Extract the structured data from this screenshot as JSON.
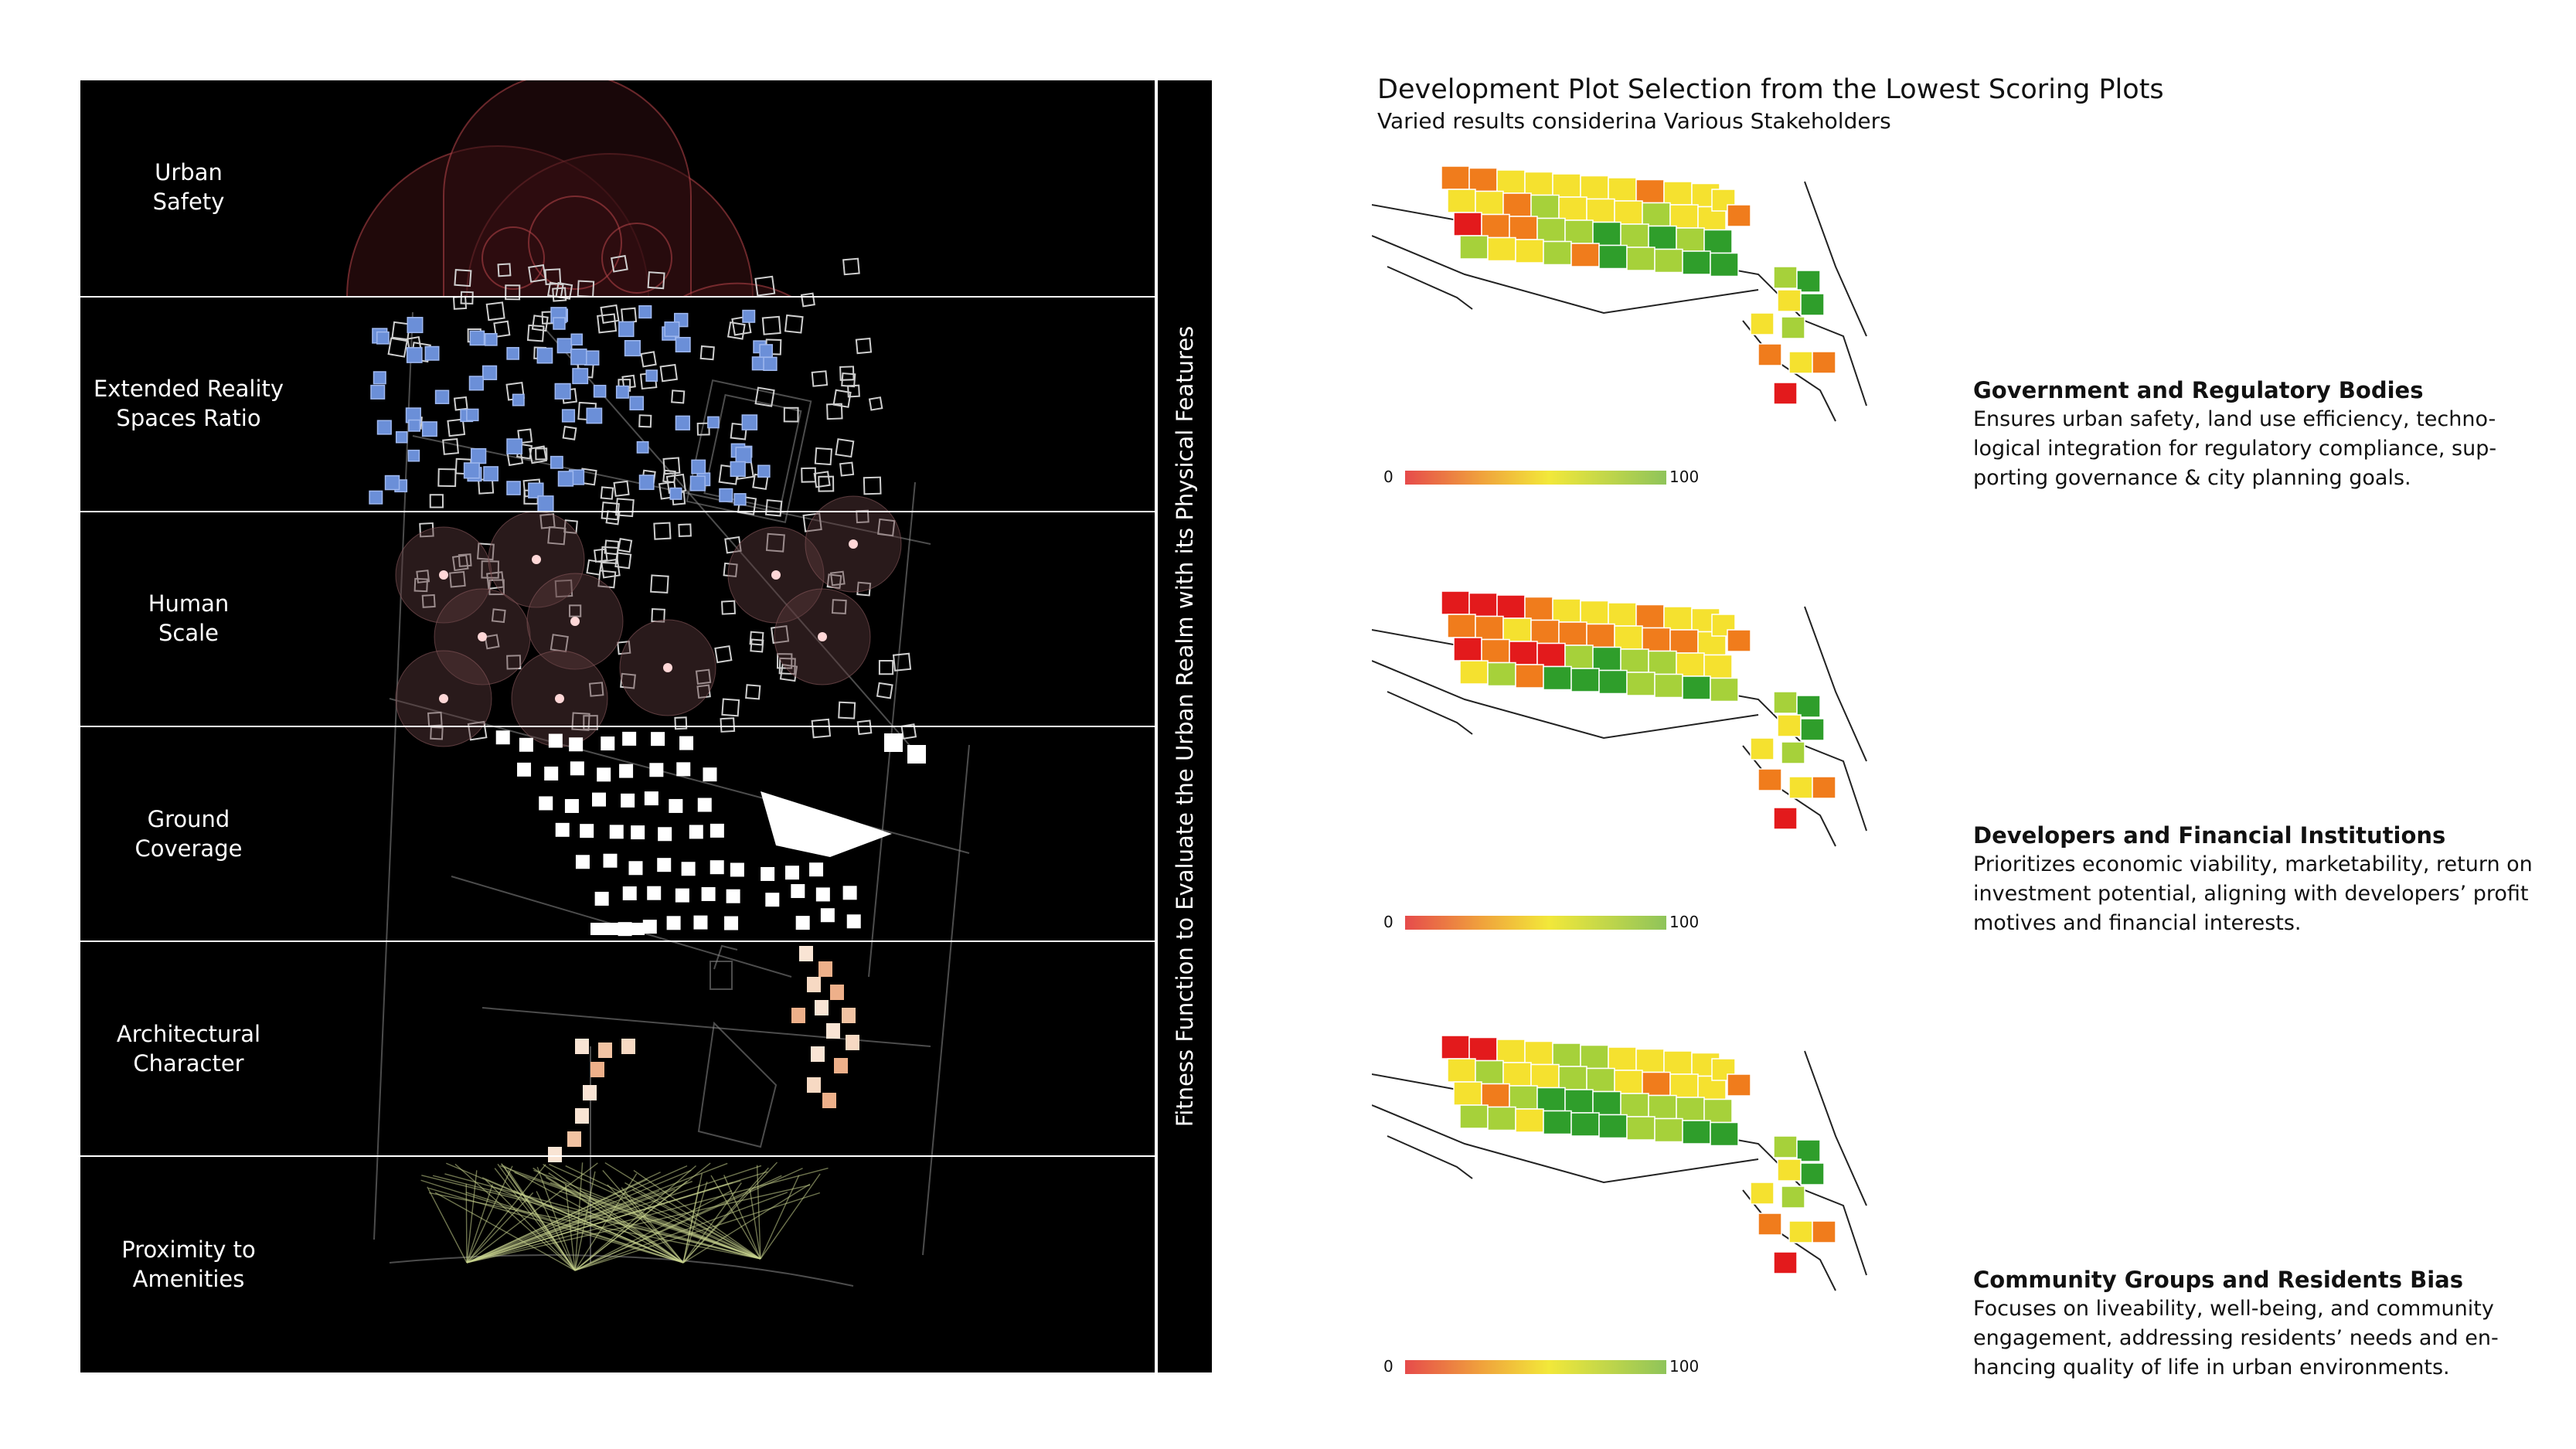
{
  "left_panel": {
    "bands": [
      {
        "label": "Urban\nSafety"
      },
      {
        "label": "Extended Reality\nSpaces Ratio"
      },
      {
        "label": "Human\nScale"
      },
      {
        "label": "Ground\nCoverage"
      },
      {
        "label": "Architectural\nCharacter"
      },
      {
        "label": "Proximity to\nAmenities"
      }
    ]
  },
  "vertical_label": "Fitness Function to Evaluate the Urban Realm with its Physical Features",
  "right_panel": {
    "title": "Development Plot Selection from the Lowest Scoring Plots",
    "subtitle": "Varied results considerina Various Stakeholders",
    "legend": {
      "min": "0",
      "max": "100"
    },
    "stakeholders": [
      {
        "title": "Government and Regulatory Bodies",
        "description": "Ensures urban safety, land use efficiency, techno-logical integration for regulatory compliance, sup-porting governance & city planning goals."
      },
      {
        "title": "Developers and Financial Institutions",
        "description": "Prioritizes economic viability, marketability, return on investment potential, aligning with developers’ profit motives and financial interests."
      },
      {
        "title": "Community Groups and Residents Bias",
        "description": "Focuses on liveability, well-being, and community engagement, addressing residents’ needs and en-hancing quality of life in urban environments."
      }
    ]
  },
  "colors": {
    "score_scale": [
      "#e31a1c",
      "#f07c1c",
      "#f5e12f",
      "#a6d13a",
      "#2f9e2b"
    ],
    "panel_background": "#000000",
    "xr_blue": "#6b8fd8",
    "safety_red": "#b8454a",
    "plot_peach": "#f2c3a3",
    "amenity_green": "#c8d48e"
  }
}
